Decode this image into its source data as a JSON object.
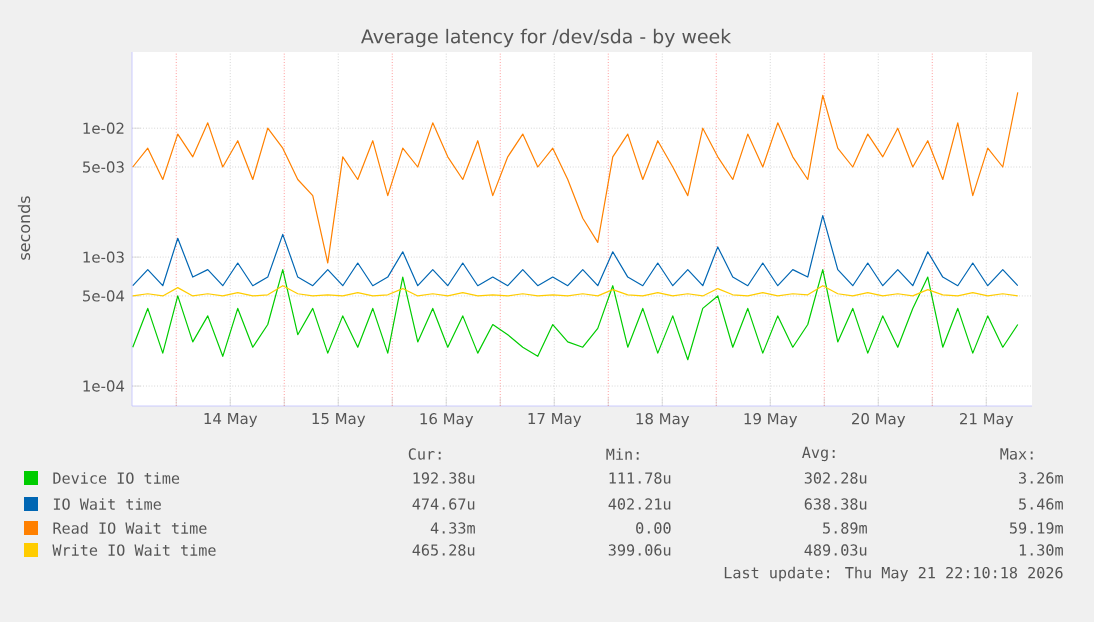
{
  "chart_data": {
    "type": "line",
    "title": "Average latency for /dev/sda - by week",
    "ylabel": "seconds",
    "log": "y",
    "grid": true,
    "legend": "bottom",
    "xlim": [
      "2026-05-13T14:10",
      "2026-05-21T22:10"
    ],
    "ylim": [
      7e-05,
      0.039
    ],
    "xticks": [
      {
        "value": "2026-05-14T00:00",
        "label": null
      },
      {
        "value": "2026-05-14T12:00",
        "label": "14 May"
      },
      {
        "value": "2026-05-15T00:00",
        "label": null
      },
      {
        "value": "2026-05-15T12:00",
        "label": "15 May"
      },
      {
        "value": "2026-05-16T00:00",
        "label": null
      },
      {
        "value": "2026-05-16T12:00",
        "label": "16 May"
      },
      {
        "value": "2026-05-17T00:00",
        "label": null
      },
      {
        "value": "2026-05-17T12:00",
        "label": "17 May"
      },
      {
        "value": "2026-05-18T00:00",
        "label": null
      },
      {
        "value": "2026-05-18T12:00",
        "label": "18 May"
      },
      {
        "value": "2026-05-19T00:00",
        "label": null
      },
      {
        "value": "2026-05-19T12:00",
        "label": "19 May"
      },
      {
        "value": "2026-05-20T00:00",
        "label": null
      },
      {
        "value": "2026-05-20T12:00",
        "label": "20 May"
      },
      {
        "value": "2026-05-21T00:00",
        "label": null
      },
      {
        "value": "2026-05-21T12:00",
        "label": "21 May"
      }
    ],
    "yticks": [
      {
        "value": 0.0001,
        "label": "1e-04"
      },
      {
        "value": 0.0005,
        "label": "5e-04"
      },
      {
        "value": 0.001,
        "label": "1e-03"
      },
      {
        "value": 0.005,
        "label": "5e-03"
      },
      {
        "value": 0.01,
        "label": "1e-02"
      }
    ],
    "x": [
      "2026-05-13T14:20",
      "2026-05-13T17:40",
      "2026-05-13T21:00",
      "2026-05-14T00:20",
      "2026-05-14T03:40",
      "2026-05-14T07:00",
      "2026-05-14T10:20",
      "2026-05-14T13:40",
      "2026-05-14T17:00",
      "2026-05-14T20:20",
      "2026-05-14T23:40",
      "2026-05-15T03:00",
      "2026-05-15T06:20",
      "2026-05-15T09:40",
      "2026-05-15T13:00",
      "2026-05-15T16:20",
      "2026-05-15T19:40",
      "2026-05-15T23:00",
      "2026-05-16T02:20",
      "2026-05-16T05:40",
      "2026-05-16T09:00",
      "2026-05-16T12:20",
      "2026-05-16T15:40",
      "2026-05-16T19:00",
      "2026-05-16T22:20",
      "2026-05-17T01:40",
      "2026-05-17T05:00",
      "2026-05-17T08:20",
      "2026-05-17T11:40",
      "2026-05-17T15:00",
      "2026-05-17T18:20",
      "2026-05-17T21:40",
      "2026-05-18T01:00",
      "2026-05-18T04:20",
      "2026-05-18T07:40",
      "2026-05-18T11:00",
      "2026-05-18T14:20",
      "2026-05-18T17:40",
      "2026-05-18T21:00",
      "2026-05-19T00:20",
      "2026-05-19T03:40",
      "2026-05-19T07:00",
      "2026-05-19T10:20",
      "2026-05-19T13:40",
      "2026-05-19T17:00",
      "2026-05-19T20:20",
      "2026-05-19T23:40",
      "2026-05-20T03:00",
      "2026-05-20T06:20",
      "2026-05-20T09:40",
      "2026-05-20T13:00",
      "2026-05-20T16:20",
      "2026-05-20T19:40",
      "2026-05-20T23:00",
      "2026-05-21T02:20",
      "2026-05-21T05:40",
      "2026-05-21T09:00",
      "2026-05-21T12:20",
      "2026-05-21T15:40",
      "2026-05-21T19:00"
    ],
    "series": [
      {
        "name": "Device IO time",
        "color": "#00cc00",
        "values": [
          0.0002,
          0.0004,
          0.00018,
          0.0005,
          0.00022,
          0.00035,
          0.00017,
          0.0004,
          0.0002,
          0.0003,
          0.0008,
          0.00025,
          0.0004,
          0.00018,
          0.00035,
          0.0002,
          0.0004,
          0.00018,
          0.0007,
          0.00022,
          0.0004,
          0.0002,
          0.00035,
          0.00018,
          0.0003,
          0.00025,
          0.0002,
          0.00017,
          0.0003,
          0.00022,
          0.0002,
          0.00028,
          0.0006,
          0.0002,
          0.0004,
          0.00018,
          0.00035,
          0.00016,
          0.0004,
          0.0005,
          0.0002,
          0.0004,
          0.00018,
          0.00035,
          0.0002,
          0.0003,
          0.0008,
          0.00022,
          0.0004,
          0.00018,
          0.00035,
          0.0002,
          0.0004,
          0.0007,
          0.0002,
          0.0004,
          0.00018,
          0.00035,
          0.0002,
          0.0003
        ]
      },
      {
        "name": "IO Wait time",
        "color": "#0066b3",
        "values": [
          0.0006,
          0.0008,
          0.0006,
          0.0014,
          0.0007,
          0.0008,
          0.0006,
          0.0009,
          0.0006,
          0.0007,
          0.0015,
          0.0007,
          0.0006,
          0.0008,
          0.0006,
          0.0009,
          0.0006,
          0.0007,
          0.0011,
          0.0006,
          0.0008,
          0.0006,
          0.0009,
          0.0006,
          0.0007,
          0.0006,
          0.0008,
          0.0006,
          0.0007,
          0.0006,
          0.0008,
          0.0006,
          0.0011,
          0.0007,
          0.0006,
          0.0009,
          0.0006,
          0.0008,
          0.0006,
          0.0012,
          0.0007,
          0.0006,
          0.0009,
          0.0006,
          0.0008,
          0.0007,
          0.0021,
          0.0008,
          0.0006,
          0.0009,
          0.0006,
          0.0008,
          0.0006,
          0.0011,
          0.0007,
          0.0006,
          0.0009,
          0.0006,
          0.0008,
          0.0006
        ]
      },
      {
        "name": "Read IO Wait time",
        "color": "#ff8000",
        "values": [
          0.005,
          0.007,
          0.004,
          0.009,
          0.006,
          0.011,
          0.005,
          0.008,
          0.004,
          0.01,
          0.007,
          0.004,
          0.003,
          0.0009,
          0.006,
          0.004,
          0.008,
          0.003,
          0.007,
          0.005,
          0.011,
          0.006,
          0.004,
          0.008,
          0.003,
          0.006,
          0.009,
          0.005,
          0.007,
          0.004,
          0.002,
          0.0013,
          0.006,
          0.009,
          0.004,
          0.008,
          0.005,
          0.003,
          0.01,
          0.006,
          0.004,
          0.009,
          0.005,
          0.011,
          0.006,
          0.004,
          0.018,
          0.007,
          0.005,
          0.009,
          0.006,
          0.01,
          0.005,
          0.008,
          0.004,
          0.011,
          0.003,
          0.007,
          0.005,
          0.019
        ]
      },
      {
        "name": "Write IO Wait time",
        "color": "#ffcc00",
        "values": [
          0.0005,
          0.00052,
          0.0005,
          0.00058,
          0.0005,
          0.00052,
          0.0005,
          0.00053,
          0.0005,
          0.00051,
          0.0006,
          0.00052,
          0.0005,
          0.00051,
          0.0005,
          0.00053,
          0.0005,
          0.00051,
          0.00057,
          0.0005,
          0.00052,
          0.0005,
          0.00053,
          0.0005,
          0.00051,
          0.0005,
          0.00052,
          0.0005,
          0.00051,
          0.0005,
          0.00052,
          0.0005,
          0.00056,
          0.00051,
          0.0005,
          0.00053,
          0.0005,
          0.00052,
          0.0005,
          0.00057,
          0.00051,
          0.0005,
          0.00053,
          0.0005,
          0.00052,
          0.00051,
          0.0006,
          0.00052,
          0.0005,
          0.00053,
          0.0005,
          0.00052,
          0.0005,
          0.00056,
          0.00051,
          0.0005,
          0.00053,
          0.0005,
          0.00052,
          0.0005
        ]
      }
    ],
    "annotations": [
      "Cur:",
      "Min:",
      "Avg:",
      "Max:",
      "192.38u",
      "111.78u",
      "302.28u",
      "3.26m",
      "474.67u",
      "402.21u",
      "638.38u",
      "5.46m",
      "4.33m",
      "0.00",
      "5.89m",
      "59.19m",
      "465.28u",
      "399.06u",
      "489.03u",
      "1.30m",
      "Last update: Thu May 21 22:10:18 2026"
    ]
  }
}
